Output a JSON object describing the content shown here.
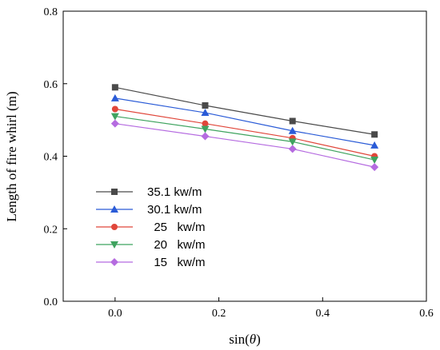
{
  "chart_data": {
    "type": "line",
    "xlabel_prefix": "sin(",
    "xlabel_symbol": "θ",
    "xlabel_suffix": ")",
    "ylabel": "Length of fire whirl (m)",
    "xlim": [
      -0.1,
      0.6
    ],
    "ylim": [
      0.0,
      0.8
    ],
    "xticks": [
      0.0,
      0.2,
      0.4,
      0.6
    ],
    "yticks": [
      0.0,
      0.2,
      0.4,
      0.6,
      0.8
    ],
    "xtick_labels": [
      "0.0",
      "0.2",
      "0.4",
      "0.6"
    ],
    "ytick_labels": [
      "0.0",
      "0.2",
      "0.4",
      "0.6",
      "0.8"
    ],
    "grid": false,
    "legend_position": "lower-left",
    "x": [
      0.0,
      0.1736,
      0.342,
      0.5
    ],
    "series": [
      {
        "name": "35.1 kw/m",
        "values": [
          0.59,
          0.54,
          0.497,
          0.46
        ],
        "color": "#4a4a4a",
        "marker": "square"
      },
      {
        "name": "30.1 kw/m",
        "values": [
          0.56,
          0.52,
          0.47,
          0.43
        ],
        "color": "#2a5bd7",
        "marker": "triangle-up"
      },
      {
        "name": "  25   kw/m",
        "values": [
          0.53,
          0.49,
          0.45,
          0.4
        ],
        "color": "#e0463a",
        "marker": "circle"
      },
      {
        "name": "  20   kw/m",
        "values": [
          0.51,
          0.475,
          0.44,
          0.39
        ],
        "color": "#3fa35f",
        "marker": "triangle-down"
      },
      {
        "name": "  15   kw/m",
        "values": [
          0.49,
          0.455,
          0.42,
          0.37
        ],
        "color": "#b56be0",
        "marker": "diamond"
      }
    ]
  }
}
